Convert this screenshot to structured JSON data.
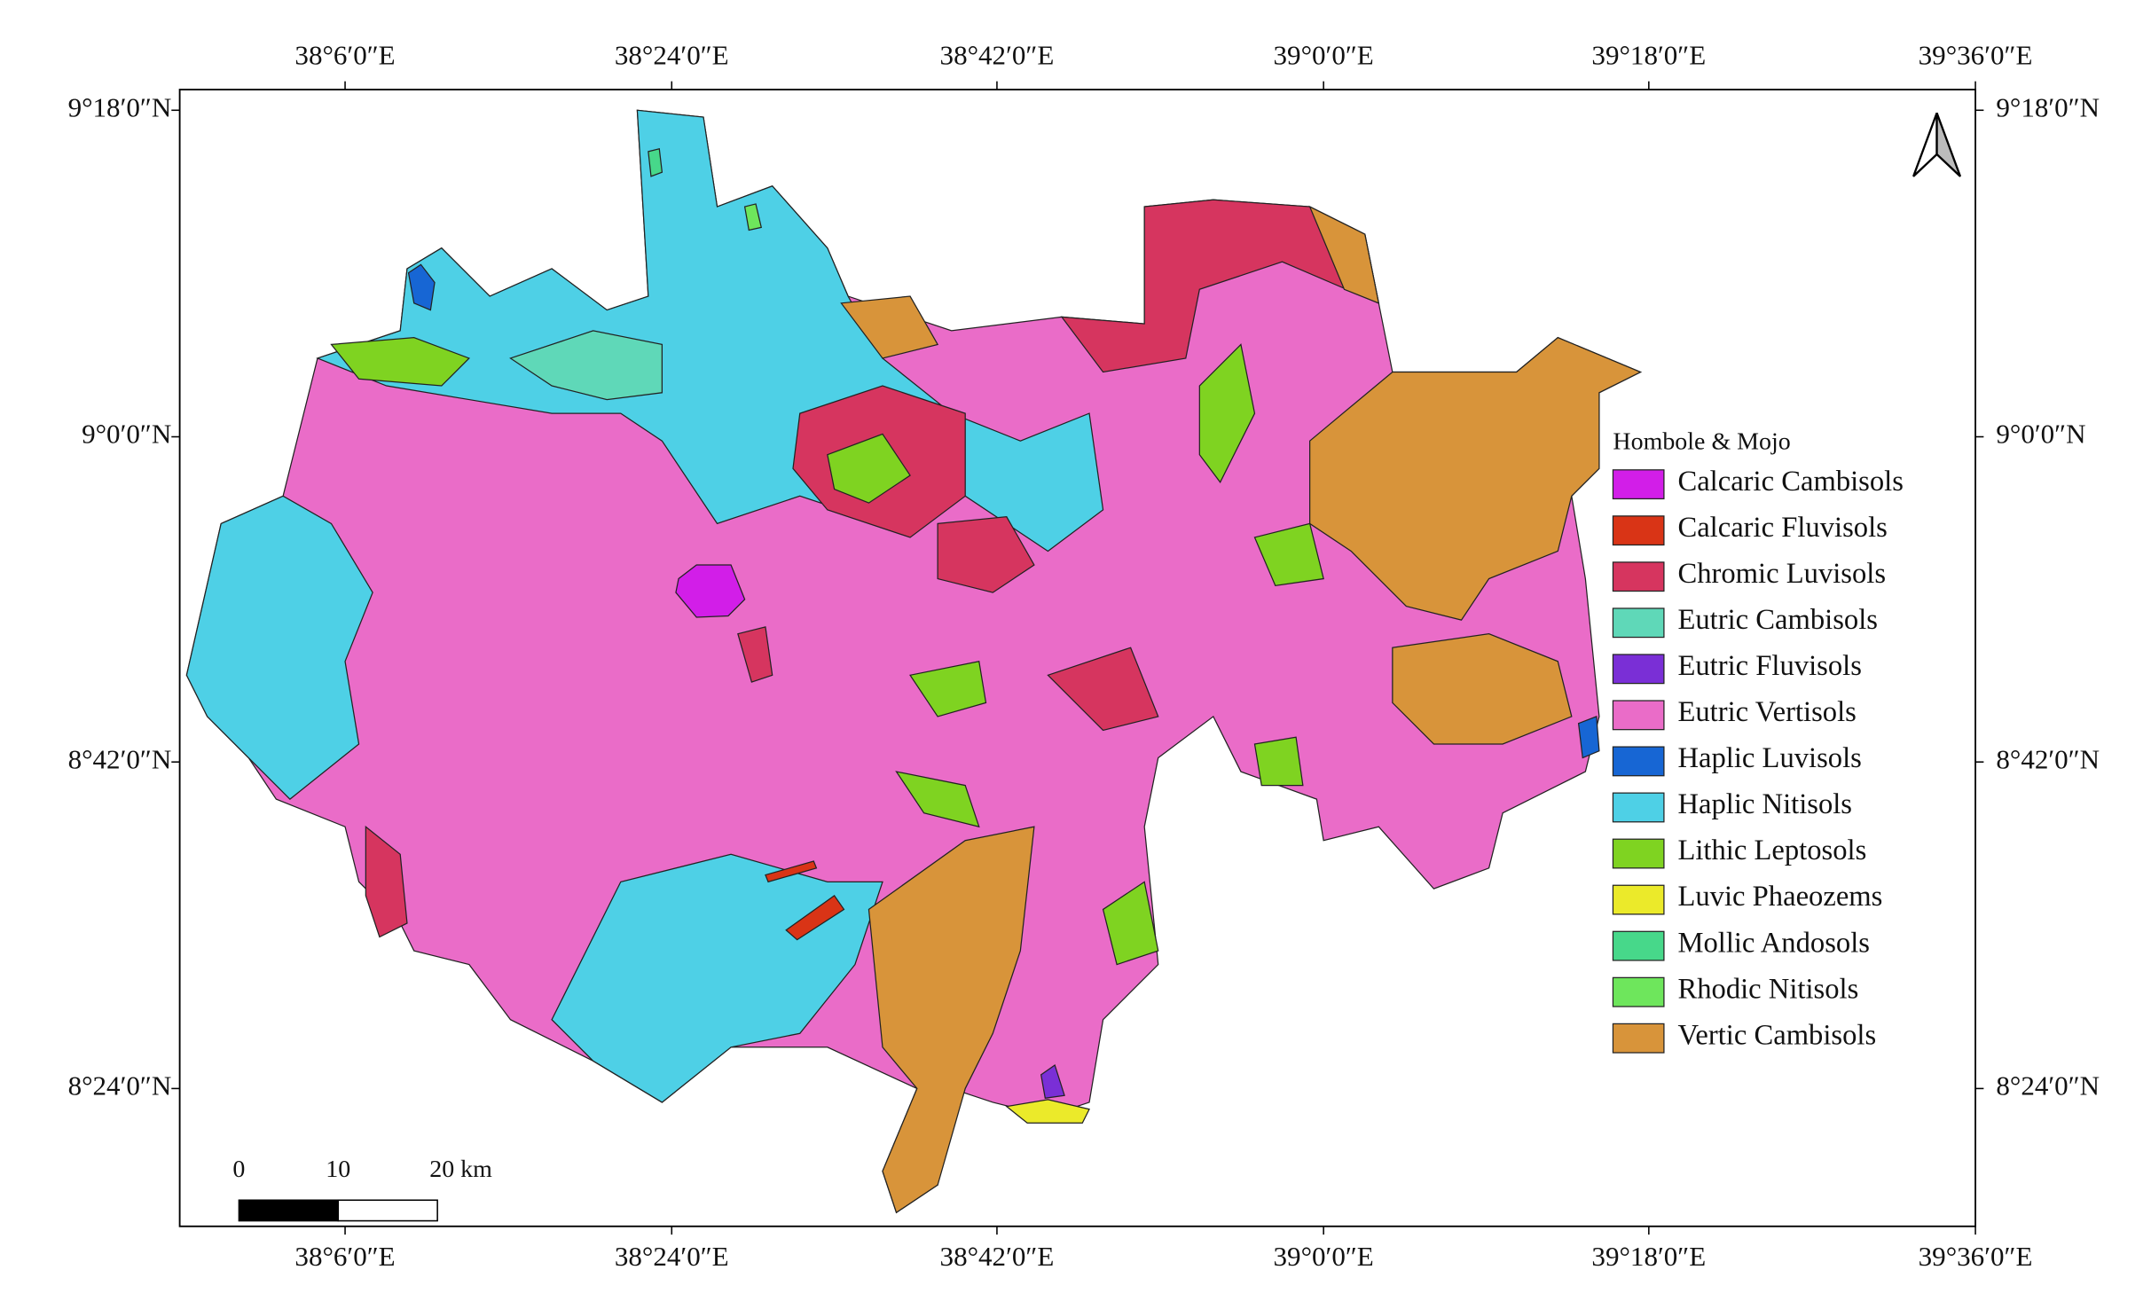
{
  "map": {
    "lon_ticks": [
      "38°6′0″E",
      "38°24′0″E",
      "38°42′0″E",
      "39°0′0″E",
      "39°18′0″E",
      "39°36′0″E"
    ],
    "lat_ticks": [
      "9°18′0″N",
      "9°0′0″N",
      "8°42′0″N",
      "8°24′0″N"
    ],
    "legend": {
      "title": "Hombole & Mojo",
      "items": [
        {
          "name": "Calcaric Cambisols",
          "color": "#d21ee8"
        },
        {
          "name": "Calcaric Fluvisols",
          "color": "#d93416"
        },
        {
          "name": "Chromic Luvisols",
          "color": "#d6355f"
        },
        {
          "name": "Eutric Cambisols",
          "color": "#5fd8b8"
        },
        {
          "name": "Eutric Fluvisols",
          "color": "#7a2fd6"
        },
        {
          "name": "Eutric Vertisols",
          "color": "#ea6cc8"
        },
        {
          "name": "Haplic Luvisols",
          "color": "#1766d4"
        },
        {
          "name": "Haplic Nitisols",
          "color": "#4ed0e6"
        },
        {
          "name": "Lithic Leptosols",
          "color": "#7fd321"
        },
        {
          "name": "Luvic Phaeozems",
          "color": "#ebea2a"
        },
        {
          "name": "Mollic Andosols",
          "color": "#47d88a"
        },
        {
          "name": "Rhodic Nitisols",
          "color": "#6ee65c"
        },
        {
          "name": "Vertic Cambisols",
          "color": "#d8943a"
        }
      ]
    },
    "scale_bar": [
      "0",
      "10",
      "20 km"
    ]
  }
}
